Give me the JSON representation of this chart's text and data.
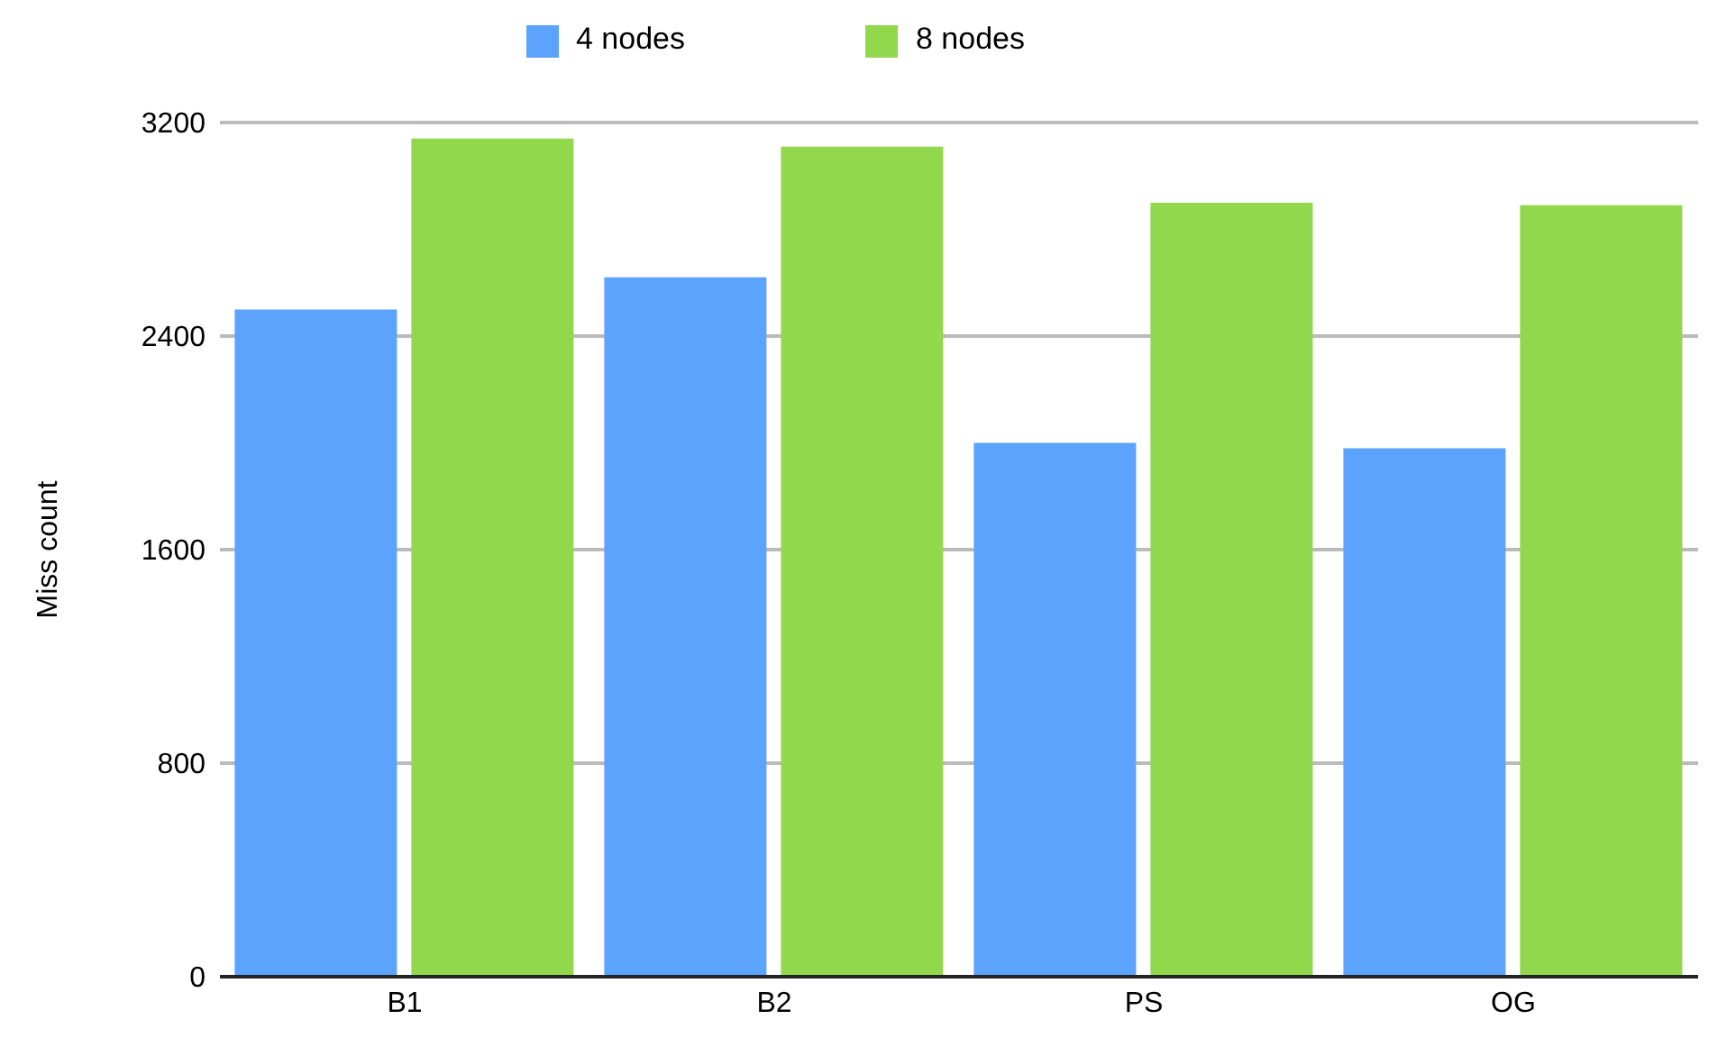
{
  "chart_data": {
    "type": "bar",
    "ylabel": "Miss count",
    "categories": [
      "B1",
      "B2",
      "PS",
      "OG"
    ],
    "series": [
      {
        "name": "4 nodes",
        "color": "#5ba3fd",
        "values": [
          2500,
          2620,
          2000,
          1980
        ]
      },
      {
        "name": "8 nodes",
        "color": "#92d84c",
        "values": [
          3140,
          3110,
          2900,
          2890
        ]
      }
    ],
    "ylim": [
      0,
      3200
    ],
    "yticks": [
      0,
      800,
      1600,
      2400,
      3200
    ],
    "grid": "y",
    "legend": "top"
  }
}
